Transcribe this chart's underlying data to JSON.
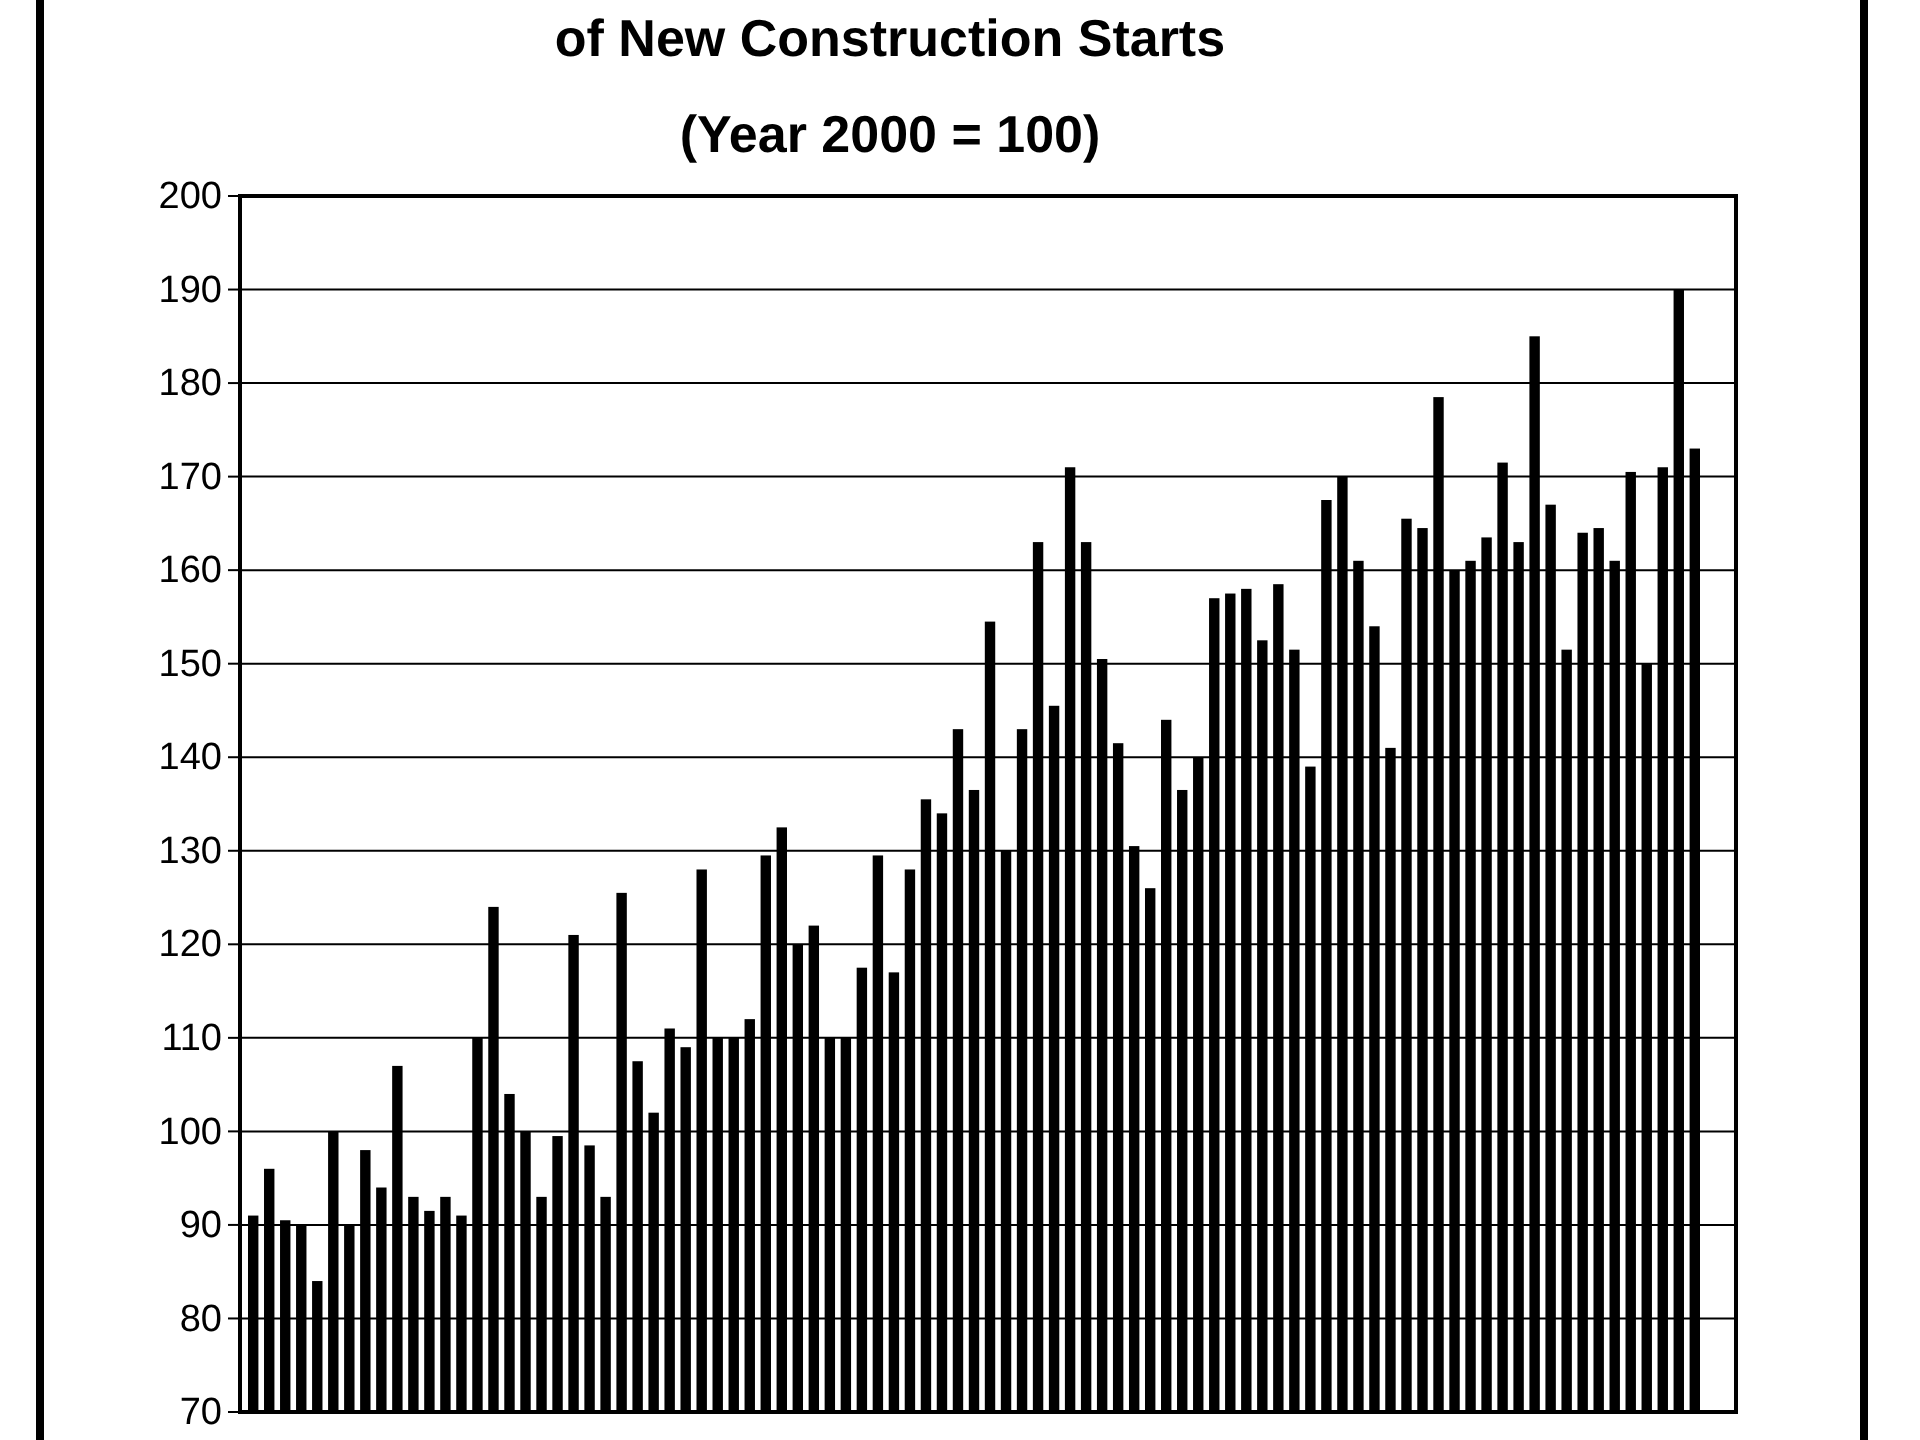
{
  "chart_data": {
    "type": "bar",
    "title": "of New Construction Starts",
    "subtitle": "(Year 2000 = 100)",
    "categories": [
      null,
      null,
      null,
      null,
      null,
      null,
      null,
      null,
      null,
      null,
      null,
      null,
      null,
      null,
      null,
      null,
      null,
      null,
      null,
      null,
      null,
      null,
      null,
      null,
      null,
      null,
      null,
      null,
      null,
      null,
      null,
      null,
      null,
      null,
      null,
      null,
      null,
      null,
      null,
      null,
      null,
      null,
      null,
      null,
      null,
      null,
      null,
      null,
      null,
      null,
      null,
      null,
      null,
      null,
      null,
      null,
      null,
      null,
      null,
      null,
      null,
      null,
      null,
      null,
      null,
      null,
      null,
      null,
      null,
      null,
      null,
      null,
      null,
      null,
      null,
      null,
      null,
      null,
      null,
      null,
      null,
      null,
      null,
      null,
      null,
      null,
      null,
      null,
      null,
      null,
      null
    ],
    "values": [
      91,
      96,
      90.5,
      90,
      84,
      100,
      90,
      98,
      94,
      107,
      93,
      91.5,
      93,
      91,
      110,
      124,
      104,
      100,
      93,
      99.5,
      121,
      98.5,
      93,
      125.5,
      107.5,
      102,
      111,
      109,
      128,
      110,
      110,
      112,
      129.5,
      132.5,
      120,
      122,
      110,
      110,
      117.5,
      129.5,
      117,
      128,
      135.5,
      134,
      143,
      136.5,
      154.5,
      130,
      143,
      163,
      145.5,
      171,
      163,
      150.5,
      141.5,
      130.5,
      126,
      144,
      136.5,
      140,
      157,
      157.5,
      158,
      152.5,
      158.5,
      151.5,
      139,
      167.5,
      170,
      161,
      154,
      141,
      165.5,
      164.5,
      178.5,
      160,
      161,
      163.5,
      171.5,
      163,
      185,
      167,
      151.5,
      164,
      164.5,
      161,
      170.5,
      150,
      171,
      190,
      173
    ],
    "color": "#000000",
    "ylim": [
      70,
      200
    ],
    "yticks": [
      70,
      80,
      90,
      100,
      110,
      120,
      130,
      140,
      150,
      160,
      170,
      180,
      190,
      200
    ],
    "grid": "y"
  }
}
